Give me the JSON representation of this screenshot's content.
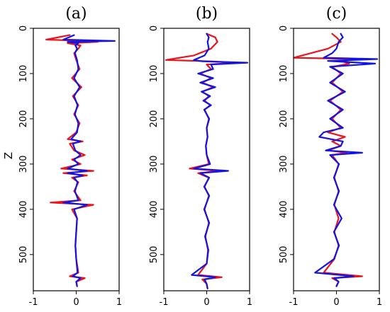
{
  "chart_data": [
    {
      "type": "line",
      "title": "(a)",
      "ylabel": "Z",
      "xlim": [
        -1,
        1
      ],
      "ylim": [
        580,
        0
      ],
      "xticks": [
        "-1",
        "0",
        "1"
      ],
      "yticks": [
        "0",
        "100",
        "200",
        "300",
        "400",
        "500"
      ],
      "colors": [
        "#e8141e",
        "#1414e0"
      ],
      "series": [
        {
          "z": [
            15,
            25,
            28,
            30,
            33,
            38,
            45,
            55,
            70,
            90,
            110,
            130,
            150,
            170,
            190,
            210,
            230,
            245,
            250,
            255,
            270,
            280,
            290,
            300,
            310,
            315,
            320,
            325,
            330,
            340,
            360,
            380,
            385,
            390,
            400,
            420,
            450,
            480,
            510,
            540,
            548,
            552,
            560,
            570
          ],
          "x": [
            -0.15,
            -0.7,
            0.3,
            0.5,
            -0.2,
            0.1,
            0.05,
            -0.05,
            0.0,
            0.08,
            -0.1,
            0.12,
            -0.08,
            0.05,
            -0.05,
            0.08,
            0.0,
            -0.2,
            0.15,
            -0.15,
            -0.05,
            0.2,
            -0.1,
            0.1,
            -0.35,
            0.4,
            -0.3,
            0.25,
            -0.1,
            0.05,
            -0.05,
            0.1,
            -0.6,
            0.4,
            -0.1,
            0.02,
            0.0,
            -0.02,
            0.0,
            0.05,
            -0.15,
            0.2,
            0.0,
            0.02
          ]
        },
        {
          "z": [
            15,
            25,
            28,
            30,
            33,
            38,
            45,
            55,
            70,
            90,
            110,
            130,
            150,
            170,
            190,
            210,
            230,
            245,
            250,
            255,
            270,
            280,
            290,
            300,
            310,
            315,
            320,
            325,
            330,
            340,
            360,
            380,
            385,
            390,
            400,
            420,
            450,
            480,
            510,
            540,
            548,
            552,
            560,
            570
          ],
          "x": [
            -0.05,
            -0.3,
            0.9,
            -0.2,
            0.05,
            -0.02,
            0.02,
            -0.03,
            0.02,
            0.05,
            -0.05,
            0.08,
            -0.05,
            0.03,
            -0.03,
            0.05,
            0.02,
            -0.12,
            0.1,
            -0.08,
            -0.02,
            0.1,
            -0.05,
            0.05,
            -0.2,
            0.25,
            -0.2,
            0.15,
            -0.05,
            0.03,
            -0.03,
            0.05,
            -0.3,
            0.25,
            -0.05,
            0.02,
            0.0,
            -0.02,
            0.0,
            0.03,
            -0.08,
            0.1,
            0.0,
            0.02
          ]
        }
      ]
    },
    {
      "type": "line",
      "title": "(b)",
      "ylabel": "",
      "xlim": [
        -1,
        1
      ],
      "ylim": [
        580,
        0
      ],
      "xticks": [
        "-1",
        "0",
        "1"
      ],
      "yticks": [
        "0",
        "100",
        "200",
        "300",
        "400",
        "500"
      ],
      "colors": [
        "#e8141e",
        "#1414e0"
      ],
      "series": [
        {
          "z": [
            12,
            20,
            30,
            45,
            60,
            70,
            73,
            76,
            80,
            90,
            100,
            110,
            120,
            130,
            140,
            150,
            160,
            170,
            180,
            200,
            220,
            240,
            260,
            280,
            300,
            310,
            315,
            320,
            330,
            350,
            370,
            400,
            430,
            460,
            490,
            520,
            545,
            550,
            555,
            565,
            575
          ],
          "x": [
            0.0,
            0.2,
            0.25,
            0.1,
            -0.3,
            -0.95,
            0.1,
            0.7,
            0.0,
            0.1,
            -0.15,
            0.1,
            -0.1,
            0.15,
            -0.1,
            0.05,
            -0.05,
            0.08,
            -0.05,
            0.05,
            0.0,
            0.02,
            -0.02,
            0.0,
            0.05,
            -0.4,
            0.3,
            -0.2,
            0.05,
            -0.05,
            0.05,
            -0.05,
            0.05,
            -0.03,
            0.03,
            0.0,
            -0.2,
            0.35,
            -0.1,
            0.0,
            0.02
          ]
        },
        {
          "z": [
            12,
            20,
            30,
            45,
            60,
            70,
            73,
            76,
            80,
            90,
            100,
            110,
            120,
            130,
            140,
            150,
            160,
            170,
            180,
            200,
            220,
            240,
            260,
            280,
            300,
            310,
            315,
            320,
            330,
            350,
            370,
            400,
            430,
            460,
            490,
            520,
            545,
            550,
            555,
            565,
            575
          ],
          "x": [
            0.0,
            0.05,
            0.02,
            0.05,
            -0.05,
            -0.3,
            -0.1,
            0.95,
            0.1,
            0.15,
            -0.2,
            0.15,
            -0.15,
            0.2,
            -0.12,
            0.08,
            -0.08,
            0.1,
            -0.06,
            0.06,
            0.0,
            0.02,
            -0.02,
            0.0,
            0.08,
            -0.3,
            0.5,
            -0.15,
            0.06,
            -0.06,
            0.06,
            -0.06,
            0.06,
            -0.04,
            0.04,
            0.0,
            -0.35,
            0.2,
            -0.05,
            0.0,
            0.02
          ]
        }
      ]
    },
    {
      "type": "line",
      "title": "(c)",
      "ylabel": "",
      "xlim": [
        -1,
        1
      ],
      "ylim": [
        580,
        0
      ],
      "xticks": [
        "-1",
        "0",
        "1"
      ],
      "yticks": [
        "0",
        "100",
        "200",
        "300",
        "400",
        "500"
      ],
      "colors": [
        "#e8141e",
        "#1414e0"
      ],
      "series": [
        {
          "z": [
            12,
            20,
            30,
            45,
            55,
            65,
            68,
            72,
            78,
            85,
            100,
            120,
            140,
            160,
            180,
            200,
            220,
            230,
            240,
            250,
            260,
            270,
            275,
            280,
            300,
            330,
            360,
            390,
            420,
            450,
            480,
            510,
            540,
            548,
            552,
            560,
            570
          ],
          "x": [
            -0.1,
            0.0,
            0.1,
            -0.2,
            -0.6,
            -1.0,
            0.5,
            0.1,
            0.3,
            -0.1,
            0.1,
            -0.1,
            0.15,
            -0.15,
            0.1,
            -0.1,
            0.1,
            -0.2,
            0.2,
            -0.1,
            0.1,
            -0.2,
            0.25,
            -0.1,
            0.05,
            -0.05,
            0.05,
            -0.05,
            0.05,
            -0.05,
            0.05,
            -0.05,
            -0.3,
            0.6,
            -0.1,
            0.05,
            0.0
          ]
        },
        {
          "z": [
            12,
            20,
            30,
            45,
            55,
            65,
            68,
            72,
            78,
            85,
            100,
            120,
            140,
            160,
            180,
            200,
            220,
            230,
            240,
            250,
            260,
            270,
            275,
            280,
            300,
            330,
            360,
            390,
            420,
            450,
            480,
            510,
            540,
            548,
            552,
            560,
            570
          ],
          "x": [
            0.1,
            0.15,
            0.05,
            0.0,
            -0.1,
            -0.3,
            0.95,
            -0.2,
            0.9,
            -0.15,
            0.15,
            -0.15,
            0.2,
            -0.2,
            0.15,
            -0.15,
            0.15,
            -0.3,
            -0.4,
            0.15,
            0.1,
            -0.25,
            0.6,
            -0.15,
            0.06,
            -0.06,
            0.06,
            -0.06,
            0.12,
            -0.06,
            0.06,
            -0.06,
            -0.5,
            0.4,
            -0.05,
            0.05,
            0.0
          ]
        }
      ]
    }
  ]
}
